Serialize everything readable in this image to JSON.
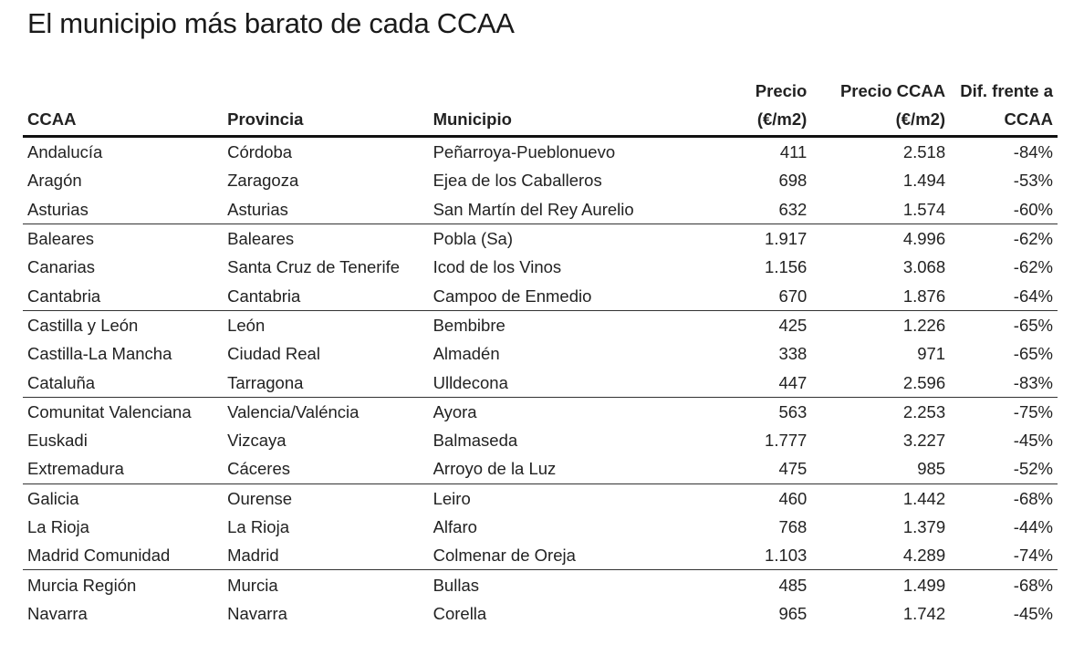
{
  "title": "El municipio más barato de cada CCAA",
  "chart_data": {
    "type": "table",
    "title": "El municipio más barato de cada CCAA",
    "columns": [
      {
        "line1": "",
        "line2": "CCAA"
      },
      {
        "line1": "",
        "line2": "Provincia"
      },
      {
        "line1": "",
        "line2": "Municipio"
      },
      {
        "line1": "Precio",
        "line2": "(€/m2)"
      },
      {
        "line1": "Precio CCAA",
        "line2": "(€/m2)"
      },
      {
        "line1": "Dif. frente a",
        "line2": "CCAA"
      }
    ],
    "rows": [
      [
        "Andalucía",
        "Córdoba",
        "Peñarroya-Pueblonuevo",
        "411",
        "2.518",
        "-84%"
      ],
      [
        "Aragón",
        "Zaragoza",
        "Ejea de los Caballeros",
        "698",
        "1.494",
        "-53%"
      ],
      [
        "Asturias",
        "Asturias",
        "San Martín del Rey Aurelio",
        "632",
        "1.574",
        "-60%"
      ],
      [
        "Baleares",
        "Baleares",
        "Pobla (Sa)",
        "1.917",
        "4.996",
        "-62%"
      ],
      [
        "Canarias",
        "Santa Cruz de Tenerife",
        "Icod de los Vinos",
        "1.156",
        "3.068",
        "-62%"
      ],
      [
        "Cantabria",
        "Cantabria",
        "Campoo de Enmedio",
        "670",
        "1.876",
        "-64%"
      ],
      [
        "Castilla y León",
        "León",
        "Bembibre",
        "425",
        "1.226",
        "-65%"
      ],
      [
        "Castilla-La Mancha",
        "Ciudad Real",
        "Almadén",
        "338",
        "971",
        "-65%"
      ],
      [
        "Cataluña",
        "Tarragona",
        "Ulldecona",
        "447",
        "2.596",
        "-83%"
      ],
      [
        "Comunitat Valenciana",
        "Valencia/Valéncia",
        "Ayora",
        "563",
        "2.253",
        "-75%"
      ],
      [
        "Euskadi",
        "Vizcaya",
        "Balmaseda",
        "1.777",
        "3.227",
        "-45%"
      ],
      [
        "Extremadura",
        "Cáceres",
        "Arroyo de la Luz",
        "475",
        "985",
        "-52%"
      ],
      [
        "Galicia",
        "Ourense",
        "Leiro",
        "460",
        "1.442",
        "-68%"
      ],
      [
        "La Rioja",
        "La Rioja",
        "Alfaro",
        "768",
        "1.379",
        "-44%"
      ],
      [
        "Madrid Comunidad",
        "Madrid",
        "Colmenar de Oreja",
        "1.103",
        "4.289",
        "-74%"
      ],
      [
        "Murcia Región",
        "Murcia",
        "Bullas",
        "485",
        "1.499",
        "-68%"
      ],
      [
        "Navarra",
        "Navarra",
        "Corella",
        "965",
        "1.742",
        "-45%"
      ]
    ]
  }
}
